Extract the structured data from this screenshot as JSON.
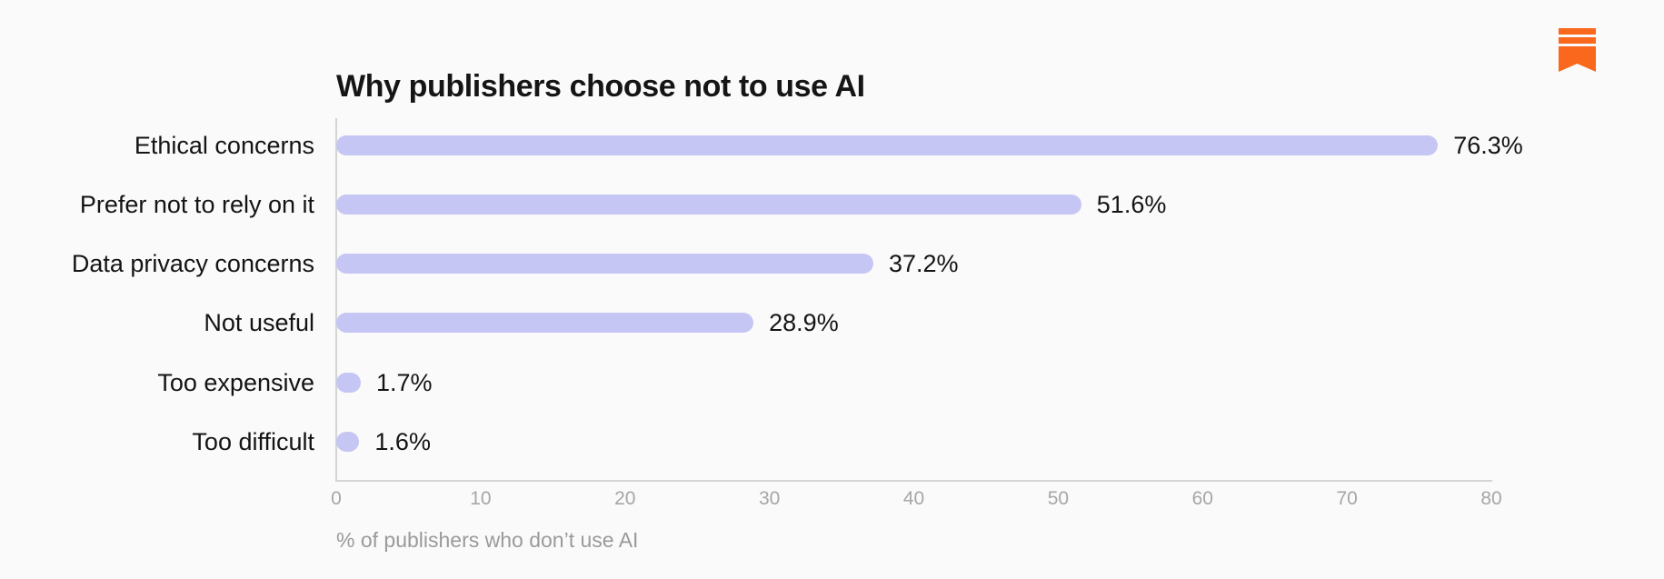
{
  "logo": {
    "name": "press-gazette-bookmark-logo",
    "color": "#f9681c"
  },
  "colors": {
    "background": "#fafafa",
    "bar": "#c6c6f5",
    "text_dark": "#141414",
    "axis_line": "#d4d4d4",
    "tick_text": "#a6a6a6",
    "caption_text": "#9a9a9a"
  },
  "chart_data": {
    "type": "bar",
    "orientation": "horizontal",
    "title": "Why publishers choose not to use AI",
    "xlabel": "% of publishers who don’t use AI",
    "ylabel": "",
    "categories": [
      "Ethical concerns",
      "Prefer not to rely on it",
      "Data privacy concerns",
      "Not useful",
      "Too expensive",
      "Too difficult"
    ],
    "values": [
      76.3,
      51.6,
      37.2,
      28.9,
      1.7,
      1.6
    ],
    "value_labels": [
      "76.3%",
      "51.6%",
      "37.2%",
      "28.9%",
      "1.7%",
      "1.6%"
    ],
    "xlim": [
      0,
      80
    ],
    "x_ticks": [
      0,
      10,
      20,
      30,
      40,
      50,
      60,
      70,
      80
    ],
    "grid": false,
    "legend": false
  }
}
